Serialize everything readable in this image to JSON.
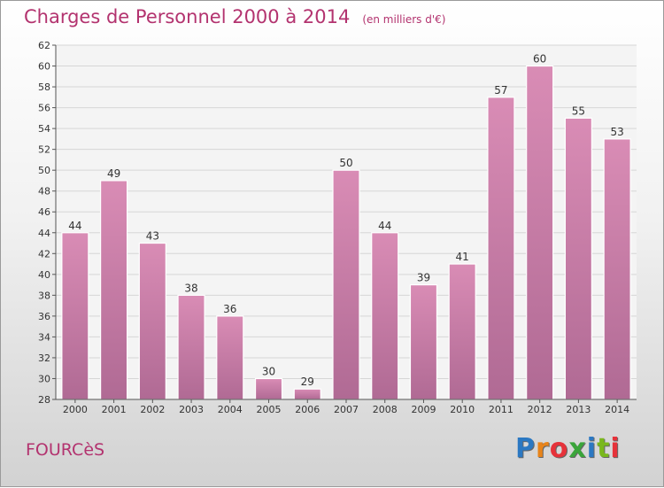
{
  "header": {
    "title": "Charges de Personnel 2000 à 2014",
    "subtitle": "(en milliers d'€)"
  },
  "footer": {
    "place": "FOURCèS",
    "brand": "Proxiti",
    "brand_colors": [
      "#2b78c2",
      "#e8841a",
      "#e6323a",
      "#3aa53a",
      "#2b78c2",
      "#7ab81c",
      "#e6323a"
    ]
  },
  "chart_data": {
    "type": "bar",
    "categories": [
      "2000",
      "2001",
      "2002",
      "2003",
      "2004",
      "2005",
      "2006",
      "2007",
      "2008",
      "2009",
      "2010",
      "2011",
      "2012",
      "2013",
      "2014"
    ],
    "values": [
      44,
      49,
      43,
      38,
      36,
      30,
      29,
      50,
      44,
      39,
      41,
      57,
      60,
      55,
      53
    ],
    "ylim": [
      28,
      62
    ],
    "yticks": [
      28,
      30,
      32,
      34,
      36,
      38,
      40,
      42,
      44,
      46,
      48,
      50,
      52,
      54,
      56,
      58,
      60,
      62
    ],
    "grid": true,
    "bar_color": "#d98cb5",
    "bar_color_dark": "#b06a94",
    "show_data_labels": true
  }
}
